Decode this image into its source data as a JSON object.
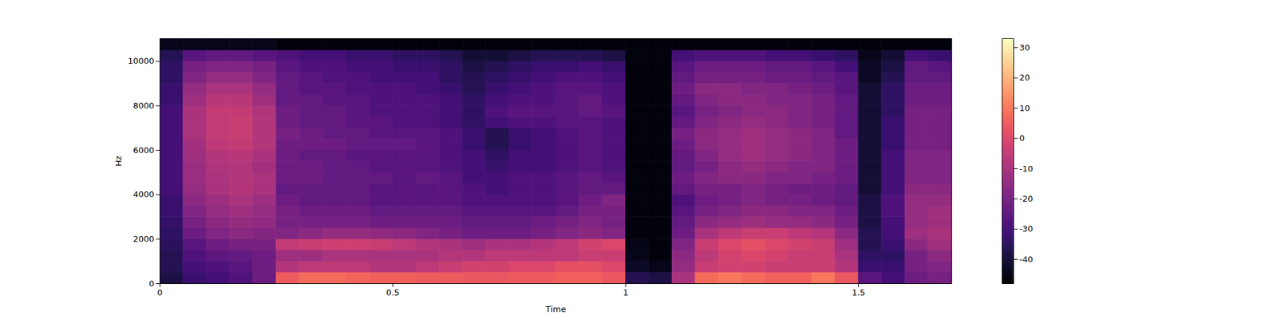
{
  "chart_data": {
    "type": "heatmap",
    "xlabel": "Time",
    "ylabel": "Hz",
    "xlim": [
      0,
      1.7
    ],
    "ylim": [
      0,
      11025
    ],
    "xticks": [
      0,
      0.5,
      1,
      1.5
    ],
    "yticks": [
      0,
      2000,
      4000,
      6000,
      8000,
      10000
    ],
    "color": "magma",
    "x_bins": [
      0,
      0.05,
      0.1,
      0.15,
      0.2,
      0.25,
      0.3,
      0.35,
      0.4,
      0.45,
      0.5,
      0.55,
      0.6,
      0.65,
      0.7,
      0.75,
      0.8,
      0.85,
      0.9,
      0.95,
      1,
      1.05,
      1.1,
      1.15,
      1.2,
      1.25,
      1.3,
      1.35,
      1.4,
      1.45,
      1.5,
      1.55,
      1.6,
      1.65,
      1.7
    ],
    "y_bins": [
      0,
      500,
      1000,
      1500,
      2000,
      2500,
      3000,
      3500,
      4000,
      4500,
      5000,
      5500,
      6000,
      6500,
      7000,
      7500,
      8000,
      8500,
      9000,
      9500,
      10000,
      10500,
      11025
    ],
    "cells": [
      [
        -38,
        -36,
        -36,
        -35,
        -34,
        -33,
        -32,
        -32,
        -30,
        -30,
        -30,
        -30,
        -30,
        -30,
        -30,
        -30,
        -32,
        -32,
        -34,
        -34,
        -36,
        -44
      ],
      [
        -32,
        -30,
        -28,
        -26,
        -22,
        -20,
        -18,
        -16,
        -14,
        -13,
        -13,
        -12,
        -11,
        -10,
        -10,
        -10,
        -12,
        -14,
        -18,
        -20,
        -26,
        -44
      ],
      [
        -30,
        -28,
        -25,
        -22,
        -18,
        -16,
        -14,
        -12,
        -10,
        -10,
        -9,
        -8,
        -6,
        -5,
        -5,
        -5,
        -7,
        -10,
        -14,
        -18,
        -24,
        -44
      ],
      [
        -28,
        -26,
        -24,
        -20,
        -16,
        -14,
        -12,
        -10,
        -8,
        -8,
        -8,
        -7,
        -5,
        -4,
        -4,
        -5,
        -7,
        -10,
        -14,
        -18,
        -24,
        -44
      ],
      [
        -22,
        -22,
        -22,
        -20,
        -17,
        -15,
        -14,
        -12,
        -10,
        -10,
        -11,
        -10,
        -8,
        -8,
        -8,
        -9,
        -12,
        -14,
        -18,
        -20,
        -26,
        -44
      ],
      [
        5,
        -8,
        -12,
        -5,
        -18,
        -20,
        -20,
        -22,
        -24,
        -22,
        -22,
        -22,
        -22,
        -20,
        -22,
        -22,
        -24,
        -24,
        -24,
        -26,
        -28,
        -46
      ],
      [
        8,
        -6,
        -12,
        -4,
        -16,
        -20,
        -22,
        -24,
        -24,
        -22,
        -22,
        -24,
        -22,
        -22,
        -24,
        -24,
        -24,
        -26,
        -26,
        -28,
        -30,
        -46
      ],
      [
        8,
        -6,
        -10,
        -3,
        -14,
        -20,
        -22,
        -24,
        -24,
        -24,
        -24,
        -24,
        -22,
        -24,
        -24,
        -24,
        -26,
        -26,
        -28,
        -28,
        -30,
        -46
      ],
      [
        7,
        -6,
        -10,
        -3,
        -14,
        -20,
        -22,
        -24,
        -24,
        -24,
        -24,
        -26,
        -24,
        -24,
        -26,
        -26,
        -26,
        -28,
        -28,
        -30,
        -32,
        -46
      ],
      [
        6,
        -8,
        -10,
        -4,
        -15,
        -22,
        -24,
        -26,
        -26,
        -24,
        -26,
        -26,
        -24,
        -26,
        -26,
        -28,
        -28,
        -28,
        -30,
        -30,
        -32,
        -46
      ],
      [
        6,
        -8,
        -10,
        -6,
        -16,
        -22,
        -24,
        -26,
        -26,
        -26,
        -26,
        -26,
        -24,
        -26,
        -28,
        -28,
        -28,
        -28,
        -30,
        -32,
        -34,
        -46
      ],
      [
        5,
        -6,
        -10,
        -8,
        -18,
        -22,
        -24,
        -26,
        -26,
        -24,
        -26,
        -26,
        -26,
        -26,
        -28,
        -28,
        -28,
        -30,
        -30,
        -32,
        -34,
        -46
      ],
      [
        5,
        -4,
        -8,
        -10,
        -20,
        -22,
        -24,
        -26,
        -26,
        -26,
        -28,
        -28,
        -28,
        -28,
        -30,
        -30,
        -30,
        -32,
        -34,
        -34,
        -36,
        -46
      ],
      [
        4,
        -2,
        -8,
        -12,
        -22,
        -24,
        -26,
        -28,
        -28,
        -30,
        -30,
        -30,
        -32,
        -32,
        -34,
        -34,
        -34,
        -36,
        -36,
        -38,
        -40,
        -46
      ],
      [
        4,
        -2,
        -6,
        -10,
        -22,
        -24,
        -26,
        -28,
        -30,
        -30,
        -32,
        -34,
        -36,
        -36,
        -30,
        -28,
        -30,
        -32,
        -34,
        -36,
        -40,
        -46
      ],
      [
        5,
        0,
        -6,
        -10,
        -22,
        -24,
        -26,
        -28,
        -28,
        -28,
        -30,
        -30,
        -32,
        -32,
        -28,
        -26,
        -28,
        -30,
        -32,
        -34,
        -38,
        -46
      ],
      [
        5,
        0,
        -6,
        -8,
        -20,
        -22,
        -26,
        -28,
        -28,
        -28,
        -30,
        -30,
        -30,
        -30,
        -28,
        -26,
        -28,
        -28,
        -30,
        -32,
        -36,
        -46
      ],
      [
        6,
        2,
        -6,
        -6,
        -18,
        -20,
        -24,
        -26,
        -26,
        -26,
        -28,
        -28,
        -28,
        -28,
        -26,
        -26,
        -26,
        -26,
        -28,
        -32,
        -36,
        -46
      ],
      [
        6,
        2,
        -4,
        -2,
        -16,
        -18,
        -20,
        -22,
        -24,
        -24,
        -26,
        -26,
        -26,
        -26,
        -26,
        -24,
        -24,
        -26,
        -28,
        -30,
        -36,
        -46
      ],
      [
        4,
        0,
        -4,
        0,
        -18,
        -20,
        -20,
        -18,
        -24,
        -26,
        -28,
        -28,
        -28,
        -28,
        -28,
        -26,
        -28,
        -28,
        -30,
        -32,
        -38,
        -46
      ],
      [
        -36,
        -42,
        -44,
        -45,
        -46,
        -46,
        -46,
        -46,
        -46,
        -46,
        -46,
        -46,
        -46,
        -46,
        -46,
        -46,
        -46,
        -46,
        -46,
        -46,
        -46,
        -46
      ],
      [
        -38,
        -44,
        -46,
        -46,
        -46,
        -46,
        -46,
        -46,
        -46,
        -46,
        -46,
        -46,
        -46,
        -46,
        -46,
        -46,
        -46,
        -46,
        -46,
        -46,
        -46,
        -46
      ],
      [
        -10,
        -14,
        -16,
        -18,
        -22,
        -24,
        -26,
        -28,
        -24,
        -22,
        -24,
        -24,
        -22,
        -20,
        -24,
        -26,
        -24,
        -22,
        -24,
        -26,
        -30,
        -46
      ],
      [
        8,
        -4,
        -6,
        -4,
        -10,
        -16,
        -20,
        -22,
        -20,
        -18,
        -20,
        -18,
        -16,
        -16,
        -18,
        -20,
        -18,
        -16,
        -20,
        -22,
        -28,
        -46
      ],
      [
        10,
        -2,
        -2,
        0,
        -6,
        -14,
        -18,
        -20,
        -20,
        -16,
        -16,
        -14,
        -14,
        -14,
        -16,
        -18,
        -16,
        -16,
        -20,
        -22,
        -28,
        -46
      ],
      [
        8,
        -2,
        0,
        2,
        -4,
        -12,
        -16,
        -18,
        -18,
        -16,
        -14,
        -12,
        -12,
        -12,
        -14,
        -16,
        -16,
        -18,
        -20,
        -22,
        -28,
        -46
      ],
      [
        6,
        -4,
        -2,
        0,
        -4,
        -14,
        -16,
        -20,
        -20,
        -18,
        -16,
        -14,
        -14,
        -14,
        -16,
        -16,
        -18,
        -18,
        -22,
        -24,
        -30,
        -46
      ],
      [
        6,
        -4,
        -4,
        -2,
        -6,
        -14,
        -18,
        -20,
        -22,
        -18,
        -18,
        -16,
        -16,
        -16,
        -18,
        -18,
        -18,
        -20,
        -22,
        -24,
        -30,
        -46
      ],
      [
        10,
        -4,
        -4,
        -4,
        -8,
        -16,
        -18,
        -22,
        -22,
        -20,
        -18,
        -18,
        -18,
        -18,
        -20,
        -20,
        -20,
        -22,
        -24,
        -26,
        -32,
        -46
      ],
      [
        4,
        -8,
        -10,
        -12,
        -16,
        -20,
        -22,
        -24,
        -24,
        -22,
        -22,
        -22,
        -22,
        -24,
        -24,
        -24,
        -24,
        -26,
        -26,
        -30,
        -34,
        -46
      ],
      [
        -26,
        -32,
        -34,
        -36,
        -36,
        -38,
        -38,
        -38,
        -40,
        -40,
        -40,
        -40,
        -40,
        -40,
        -40,
        -40,
        -40,
        -40,
        -42,
        -42,
        -44,
        -46
      ],
      [
        -30,
        -32,
        -34,
        -32,
        -30,
        -30,
        -28,
        -28,
        -30,
        -30,
        -30,
        -30,
        -32,
        -32,
        -32,
        -34,
        -34,
        -34,
        -36,
        -38,
        -40,
        -46
      ],
      [
        -22,
        -20,
        -20,
        -16,
        -12,
        -14,
        -14,
        -14,
        -16,
        -18,
        -18,
        -18,
        -20,
        -20,
        -20,
        -20,
        -22,
        -22,
        -24,
        -24,
        -30,
        -46
      ],
      [
        -20,
        -18,
        -16,
        -12,
        -10,
        -12,
        -12,
        -14,
        -16,
        -18,
        -18,
        -18,
        -20,
        -20,
        -20,
        -20,
        -22,
        -22,
        -24,
        -26,
        -32,
        -46
      ]
    ],
    "colorbar": {
      "range": [
        -48,
        33
      ],
      "ticks": [
        -40,
        -30,
        -20,
        -10,
        0,
        10,
        20,
        30
      ]
    }
  }
}
